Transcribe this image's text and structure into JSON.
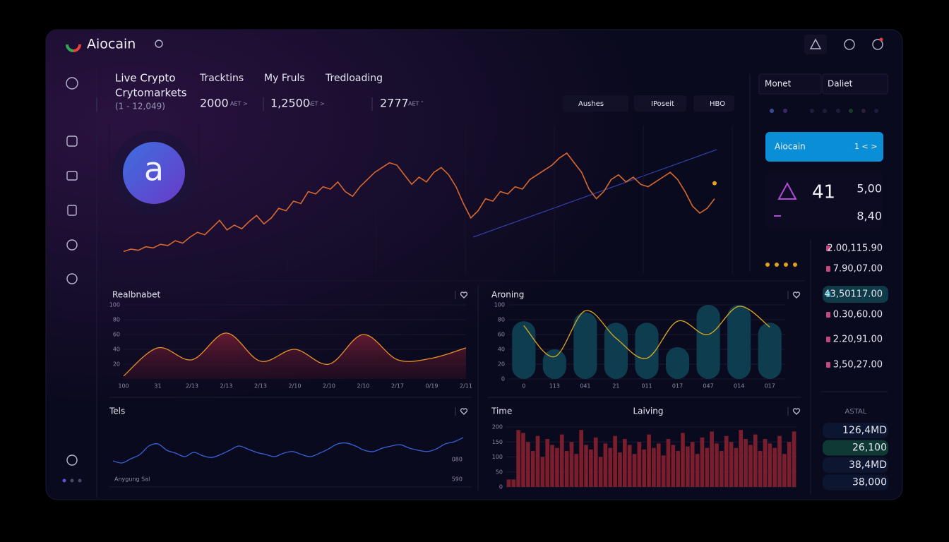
{
  "header": {
    "brand": "Aiocain"
  },
  "nav": [
    "Live Crypto",
    "Tracktins",
    "My Fruls",
    "Tredloading"
  ],
  "market": {
    "title": "Crytomarkets",
    "range": "(1 - 12,049)"
  },
  "stats": [
    {
      "value": "2000",
      "unit": "AET >"
    },
    {
      "value": "1,2500",
      "unit": "AET >"
    },
    {
      "value": "2777",
      "unit": "AET ˅"
    }
  ],
  "filters": [
    "Aushes",
    "IPoseit",
    "HBO"
  ],
  "avatar": "a",
  "side_tabs": [
    "Monet",
    "Daliet"
  ],
  "card": {
    "name": "Aiocain",
    "pager": "1 < >"
  },
  "summary": {
    "count": "41",
    "top": "5,00",
    "bottom": "8,40"
  },
  "prices": [
    "2.00,115.90",
    "7.90,07.00",
    "43,50117.00",
    "0.30,60.00",
    "2.20,91.00",
    "3,50,27.00"
  ],
  "totals": {
    "title": "ASTAL",
    "rows": [
      "126,4MD",
      "26,100",
      "38,4MD",
      "38,000"
    ]
  },
  "chart_data": [
    {
      "type": "line",
      "color": "#d9682e",
      "ylim": [
        0,
        100
      ],
      "values": [
        8,
        10,
        9,
        12,
        11,
        14,
        13,
        17,
        15,
        20,
        24,
        22,
        28,
        34,
        26,
        30,
        27,
        33,
        38,
        31,
        36,
        44,
        42,
        50,
        48,
        58,
        56,
        62,
        60,
        66,
        58,
        54,
        62,
        68,
        74,
        78,
        82,
        80,
        72,
        64,
        70,
        66,
        74,
        78,
        72,
        62,
        48,
        36,
        42,
        52,
        50,
        58,
        56,
        62,
        60,
        68,
        72,
        76,
        80,
        86,
        90,
        82,
        74,
        60,
        52,
        58,
        68,
        72,
        66,
        70,
        64,
        62,
        66,
        70,
        74,
        68,
        58,
        46,
        40,
        44,
        52
      ]
    },
    {
      "type": "area",
      "title": "Realbnabet",
      "color": "#e8902a",
      "ylim": [
        0,
        100
      ],
      "yticks": [
        20,
        40,
        60,
        80,
        100
      ],
      "categories": [
        "100",
        "31",
        "2/13",
        "2/13",
        "2/13",
        "2/10",
        "2/10",
        "2/10",
        "2/17",
        "0/19",
        "2/11"
      ],
      "values": [
        4,
        42,
        26,
        62,
        24,
        40,
        20,
        60,
        26,
        28,
        42
      ]
    },
    {
      "type": "combo",
      "title": "Aroning",
      "ylim": [
        0,
        100
      ],
      "yticks": [
        0,
        20,
        40,
        60,
        80,
        100
      ],
      "categories": [
        "0",
        "113",
        "041",
        "21",
        "011",
        "017",
        "047",
        "014",
        "017"
      ],
      "series": [
        {
          "kind": "bar",
          "color": "#0f3d50",
          "values": [
            78,
            40,
            90,
            76,
            76,
            43,
            100,
            100,
            76
          ]
        },
        {
          "kind": "line",
          "color": "#e0a820",
          "values": [
            72,
            30,
            92,
            55,
            28,
            78,
            60,
            98,
            70
          ]
        }
      ]
    },
    {
      "type": "line",
      "title": "Tels",
      "color": "#3a5fd9",
      "ylim": [
        0,
        100
      ],
      "annotations": [
        "Anygung Sal",
        "080",
        "590"
      ],
      "values": [
        20,
        15,
        25,
        35,
        55,
        60,
        45,
        38,
        30,
        40,
        32,
        28,
        35,
        45,
        55,
        48,
        40,
        35,
        30,
        38,
        42,
        35,
        30,
        38,
        48,
        60,
        62,
        55,
        45,
        42,
        50,
        55,
        58,
        50,
        45,
        42,
        48,
        60,
        65,
        75
      ]
    },
    {
      "type": "bar",
      "title": "Time",
      "subtitle": "Laiving",
      "color": "#7a1e2e",
      "ylim": [
        0,
        200
      ],
      "yticks": [
        0,
        50,
        100,
        150,
        200
      ],
      "values": [
        25,
        25,
        190,
        180,
        150,
        120,
        170,
        100,
        160,
        140,
        130,
        175,
        120,
        150,
        110,
        190,
        140,
        125,
        165,
        100,
        145,
        130,
        170,
        115,
        160,
        140,
        110,
        150,
        125,
        175,
        130,
        145,
        105,
        160,
        140,
        120,
        180,
        135,
        150,
        110,
        165,
        130,
        185,
        145,
        120,
        170,
        150,
        130,
        190,
        160,
        140,
        175,
        120,
        160,
        145,
        130,
        170,
        110,
        150,
        185
      ]
    }
  ]
}
